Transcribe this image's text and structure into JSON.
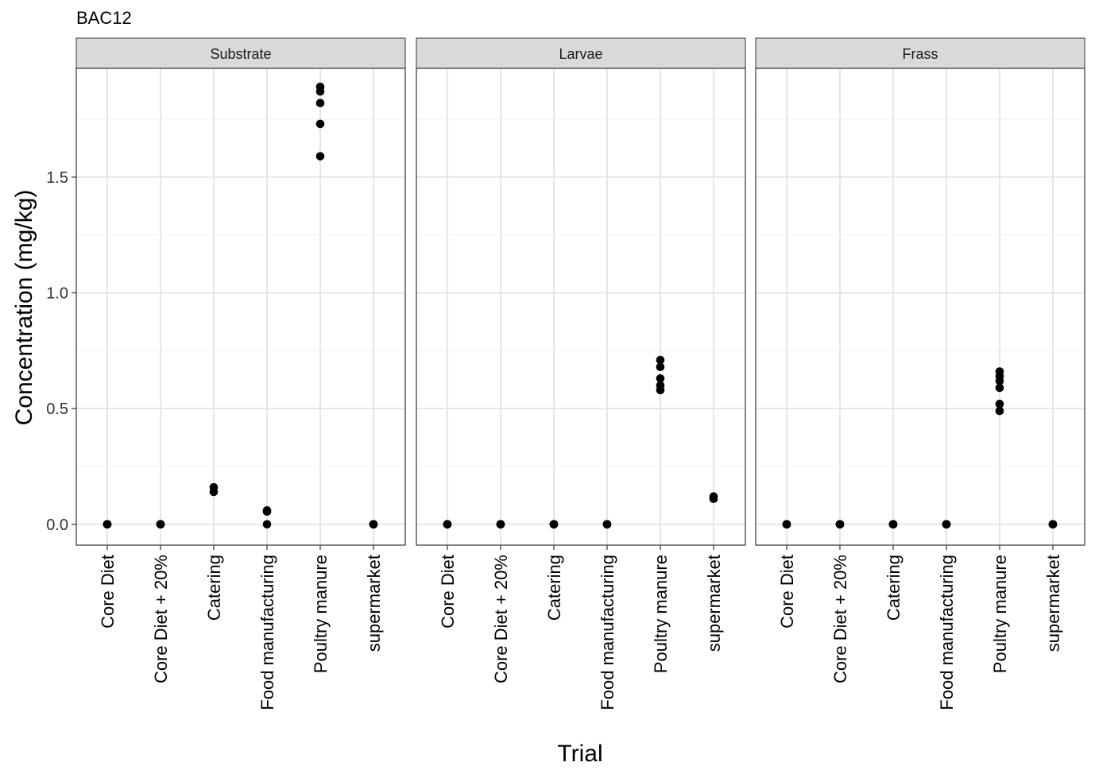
{
  "chart_data": {
    "type": "scatter",
    "title": "BAC12",
    "xlabel": "Trial",
    "ylabel": "Concentration (mg/kg)",
    "categories": [
      "Core Diet",
      "Core Diet + 20%",
      "Catering",
      "Food manufacturing",
      "Poultry manure",
      "supermarket"
    ],
    "ylim": [
      -0.09,
      1.97
    ],
    "yticks": [
      0.0,
      0.5,
      1.0,
      1.5
    ],
    "ytick_labels": [
      "0.0",
      "0.5",
      "1.0",
      "1.5"
    ],
    "grid": true,
    "legend": "none",
    "point_color": "#000000",
    "panels": [
      {
        "name": "Substrate",
        "points": [
          {
            "category": "Core Diet",
            "values": [
              0,
              0,
              0,
              0,
              0
            ]
          },
          {
            "category": "Core Diet + 20%",
            "values": [
              0,
              0,
              0,
              0,
              0
            ]
          },
          {
            "category": "Catering",
            "values": [
              0.14,
              0.16
            ]
          },
          {
            "category": "Food manufacturing",
            "values": [
              0,
              0.06,
              0.055
            ]
          },
          {
            "category": "Poultry manure",
            "values": [
              1.59,
              1.73,
              1.82,
              1.87,
              1.89
            ]
          },
          {
            "category": "supermarket",
            "values": [
              0,
              0,
              0,
              0,
              0
            ]
          }
        ]
      },
      {
        "name": "Larvae",
        "points": [
          {
            "category": "Core Diet",
            "values": [
              0,
              0,
              0,
              0,
              0
            ]
          },
          {
            "category": "Core Diet + 20%",
            "values": [
              0,
              0,
              0,
              0,
              0
            ]
          },
          {
            "category": "Catering",
            "values": [
              0,
              0,
              0,
              0,
              0
            ]
          },
          {
            "category": "Food manufacturing",
            "values": [
              0,
              0,
              0,
              0,
              0
            ]
          },
          {
            "category": "Poultry manure",
            "values": [
              0.58,
              0.6,
              0.63,
              0.68,
              0.71
            ]
          },
          {
            "category": "supermarket",
            "values": [
              0.11,
              0.12
            ]
          }
        ]
      },
      {
        "name": "Frass",
        "points": [
          {
            "category": "Core Diet",
            "values": [
              0,
              0,
              0,
              0,
              0
            ]
          },
          {
            "category": "Core Diet + 20%",
            "values": [
              0,
              0,
              0,
              0,
              0
            ]
          },
          {
            "category": "Catering",
            "values": [
              0,
              0,
              0,
              0,
              0
            ]
          },
          {
            "category": "Food manufacturing",
            "values": [
              0,
              0,
              0,
              0,
              0
            ]
          },
          {
            "category": "Poultry manure",
            "values": [
              0.49,
              0.52,
              0.59,
              0.62,
              0.64,
              0.66
            ]
          },
          {
            "category": "supermarket",
            "values": [
              0,
              0,
              0,
              0,
              0
            ]
          }
        ]
      }
    ]
  }
}
